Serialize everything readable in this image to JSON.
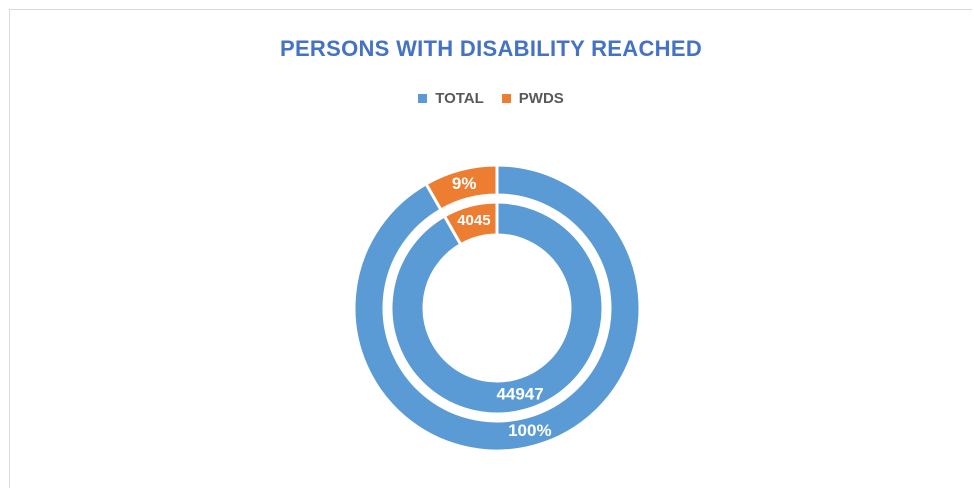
{
  "chart_data": {
    "type": "pie",
    "subtype": "doughnut",
    "title": "PERSONS WITH DISABILITY REACHED",
    "legend_position": "top",
    "categories": [
      "TOTAL",
      "PWDS"
    ],
    "colors": [
      "#5b9bd5",
      "#ed7d31"
    ],
    "title_color": "#4472c4",
    "rings": [
      {
        "ring": "inner",
        "values": [
          44947,
          4045
        ],
        "labels": [
          "44947",
          "4045"
        ]
      },
      {
        "ring": "outer",
        "values": [
          100,
          9
        ],
        "labels": [
          "100%",
          "9%"
        ]
      }
    ]
  }
}
